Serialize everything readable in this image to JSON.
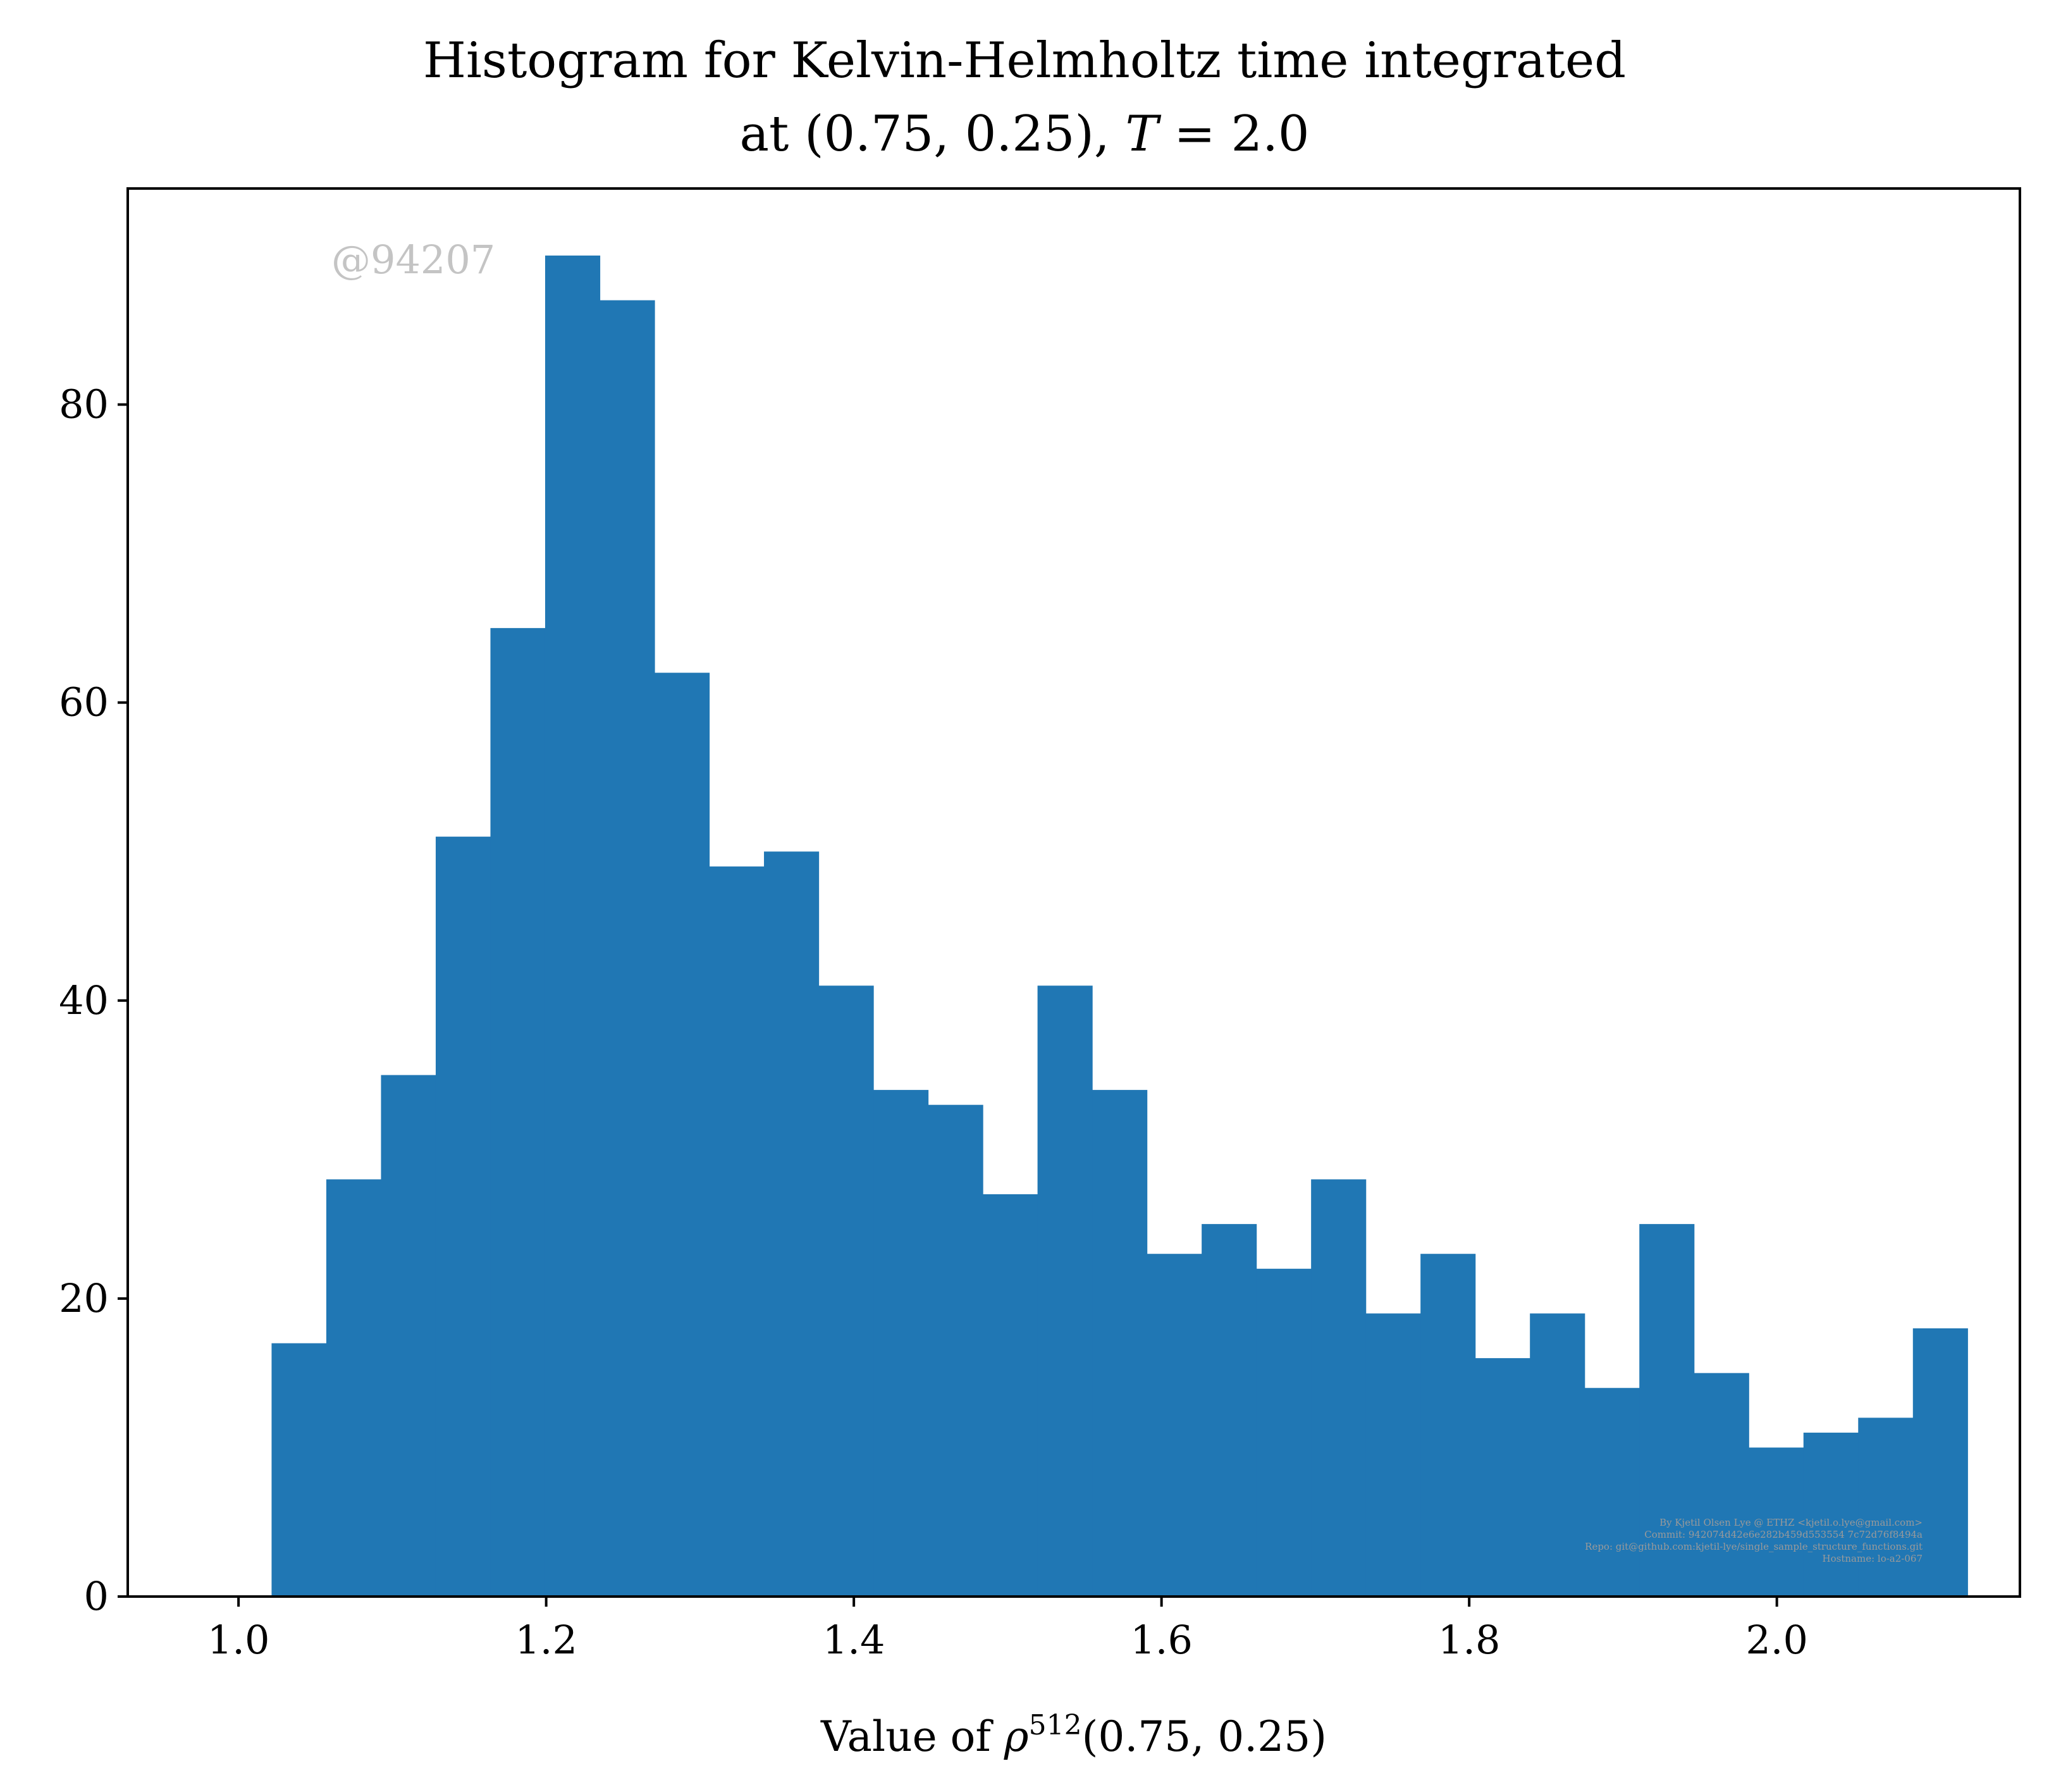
{
  "chart_data": {
    "type": "bar",
    "title_line1": "Histogram for Kelvin-Helmholtz time integrated",
    "title_line2": "at (0.75, 0.25), T = 2.0",
    "xlabel": "Value of ρ",
    "xlabel_sup": "512",
    "xlabel_suffix": "(0.75, 0.25)",
    "ylabel": "",
    "watermark": "@94207",
    "credits": [
      "By Kjetil Olsen Lye @ ETHZ <kjetil.o.lye@gmail.com>",
      "Commit: 942074d42e6e282b459d553554 7c72d76f8494a",
      "Repo: git@github.com:kjetil-lye/single_sample_structure_functions.git",
      "Hostname: lo-a2-067"
    ],
    "color": "#2077b4",
    "xlim": [
      0.928,
      2.158
    ],
    "ylim": [
      0,
      94.5
    ],
    "xticks": [
      "1.0",
      "1.2",
      "1.4",
      "1.6",
      "1.8",
      "2.0"
    ],
    "xtick_values": [
      1.0,
      1.2,
      1.4,
      1.6,
      1.8,
      2.0
    ],
    "yticks": [
      "0",
      "20",
      "40",
      "60",
      "80"
    ],
    "ytick_values": [
      0,
      20,
      40,
      60,
      80
    ],
    "bin_start": 1.0215,
    "bin_end": 2.124,
    "values": [
      17,
      28,
      35,
      51,
      65,
      90,
      87,
      62,
      49,
      50,
      41,
      34,
      33,
      27,
      41,
      34,
      23,
      25,
      22,
      28,
      19,
      23,
      16,
      19,
      14,
      25,
      15,
      10,
      11,
      12,
      18
    ]
  }
}
